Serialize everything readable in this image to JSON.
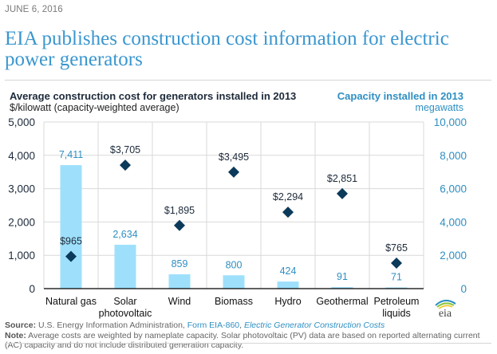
{
  "date": "JUNE 6, 2016",
  "headline": "EIA publishes construction cost information for electric power generators",
  "chart_data": {
    "type": "bar",
    "title": "Average construction cost for generators installed in 2013",
    "left_axis_label": "$/kilowatt (capacity-weighted average)",
    "right_axis_title": "Capacity installed in 2013",
    "right_axis_label": "megawatts",
    "categories": [
      "Natural gas",
      "Solar photovoltaic",
      "Wind",
      "Biomass",
      "Hydro",
      "Geothermal",
      "Petroleum liquids"
    ],
    "category_lines": [
      [
        "Natural gas"
      ],
      [
        "Solar",
        "photovoltaic"
      ],
      [
        "Wind"
      ],
      [
        "Biomass"
      ],
      [
        "Hydro"
      ],
      [
        "Geothermal"
      ],
      [
        "Petroleum",
        "liquids"
      ]
    ],
    "series": [
      {
        "name": "Capacity installed in 2013 (megawatts)",
        "kind": "bar",
        "axis": "right",
        "color": "#9ee0fb",
        "label_color": "#2f8fc2",
        "values": [
          7411,
          2634,
          859,
          800,
          424,
          91,
          71
        ],
        "labels": [
          "7,411",
          "2,634",
          "859",
          "800",
          "424",
          "91",
          "71"
        ]
      },
      {
        "name": "Average construction cost ($/kilowatt)",
        "kind": "diamond",
        "axis": "left",
        "color": "#0b3a5a",
        "label_color": "#1d2a3a",
        "values": [
          965,
          3705,
          1895,
          3495,
          2294,
          2851,
          765
        ],
        "labels": [
          "$965",
          "$3,705",
          "$1,895",
          "$3,495",
          "$2,294",
          "$2,851",
          "$765"
        ]
      }
    ],
    "left_axis": {
      "range": [
        0,
        5000
      ],
      "ticks": [
        "0",
        "1,000",
        "2,000",
        "3,000",
        "4,000",
        "5,000"
      ],
      "tick_values": [
        0,
        1000,
        2000,
        3000,
        4000,
        5000
      ]
    },
    "right_axis": {
      "range": [
        0,
        10000
      ],
      "ticks": [
        "0",
        "2,000",
        "4,000",
        "6,000",
        "8,000",
        "10,000"
      ],
      "tick_values": [
        0,
        2000,
        4000,
        6000,
        8000,
        10000
      ]
    },
    "grid": true,
    "colors": {
      "left_tick": "#1d2a3a",
      "right_tick": "#2f8fc2",
      "grid": "#d9d9d9",
      "axis": "#000000"
    }
  },
  "footer": {
    "source_label": "Source:",
    "source_text": " U.S. Energy Information Administration, ",
    "source_link": "Form EIA-860",
    "source_sep": ", ",
    "source_link2": "Electric Generator Construction Costs",
    "note_label": "Note:",
    "note_text": " Average costs are weighted by nameplate capacity. Solar photovoltaic (PV) data are based on reported alternating current (AC) capacity and do not include distributed generation capacity."
  },
  "logo": {
    "text": "eia"
  }
}
